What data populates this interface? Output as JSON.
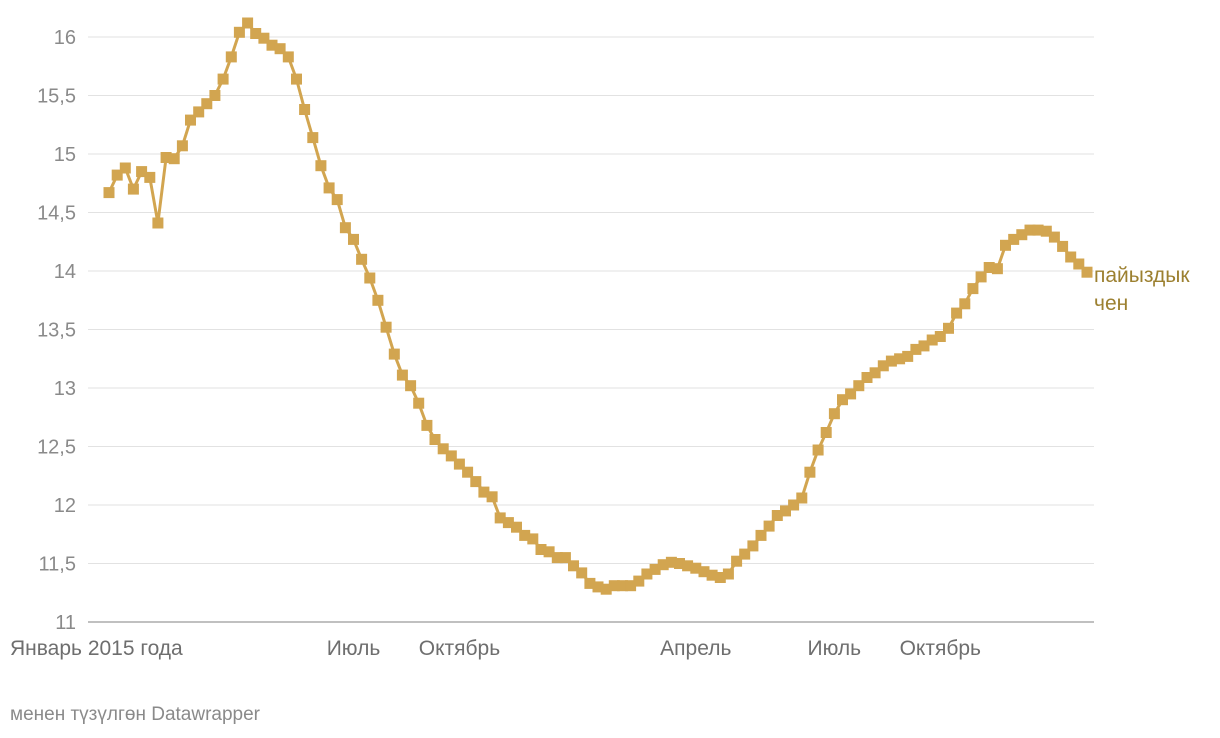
{
  "chart_data": {
    "type": "line",
    "title": "",
    "xlabel": "",
    "ylabel": "",
    "ylim": [
      11,
      16
    ],
    "y_ticks": [
      {
        "value": 16,
        "label": "16"
      },
      {
        "value": 15.5,
        "label": "15,5"
      },
      {
        "value": 15,
        "label": "15"
      },
      {
        "value": 14.5,
        "label": "14,5"
      },
      {
        "value": 14,
        "label": "14"
      },
      {
        "value": 13.5,
        "label": "13,5"
      },
      {
        "value": 13,
        "label": "13"
      },
      {
        "value": 12.5,
        "label": "12,5"
      },
      {
        "value": 12,
        "label": "12"
      },
      {
        "value": 11.5,
        "label": "11,5"
      },
      {
        "value": 11,
        "label": "11"
      }
    ],
    "x_ticks": [
      {
        "index": 0,
        "label": "Январь 2015 года",
        "anchor": "start"
      },
      {
        "index": 30,
        "label": "Июль",
        "anchor": "middle"
      },
      {
        "index": 43,
        "label": "Октябрь",
        "anchor": "middle"
      },
      {
        "index": 72,
        "label": "Апрель",
        "anchor": "middle"
      },
      {
        "index": 89,
        "label": "Июль",
        "anchor": "middle"
      },
      {
        "index": 102,
        "label": "Октябрь",
        "anchor": "middle"
      }
    ],
    "grid": true,
    "series_label": [
      "пайыздык",
      "чен"
    ],
    "color": "#d2a550",
    "label_color": "#9c8030",
    "x_count": 119,
    "values": [
      14.67,
      14.82,
      14.88,
      14.7,
      14.85,
      14.8,
      14.41,
      14.97,
      14.96,
      15.07,
      15.29,
      15.36,
      15.43,
      15.5,
      15.64,
      15.83,
      16.04,
      16.12,
      16.03,
      15.99,
      15.93,
      15.9,
      15.83,
      15.64,
      15.38,
      15.14,
      14.9,
      14.71,
      14.61,
      14.37,
      14.27,
      14.1,
      13.94,
      13.75,
      13.52,
      13.29,
      13.11,
      13.02,
      12.87,
      12.68,
      12.56,
      12.48,
      12.42,
      12.35,
      12.28,
      12.2,
      12.11,
      12.07,
      11.89,
      11.85,
      11.81,
      11.74,
      11.71,
      11.62,
      11.6,
      11.55,
      11.55,
      11.48,
      11.42,
      11.33,
      11.3,
      11.28,
      11.31,
      11.31,
      11.31,
      11.35,
      11.41,
      11.45,
      11.49,
      11.51,
      11.5,
      11.48,
      11.46,
      11.43,
      11.4,
      11.38,
      11.41,
      11.52,
      11.58,
      11.65,
      11.74,
      11.82,
      11.91,
      11.95,
      12.0,
      12.06,
      12.28,
      12.47,
      12.62,
      12.78,
      12.9,
      12.95,
      13.02,
      13.09,
      13.13,
      13.19,
      13.23,
      13.25,
      13.27,
      13.33,
      13.36,
      13.41,
      13.44,
      13.51,
      13.64,
      13.72,
      13.85,
      13.95,
      14.03,
      14.02,
      14.22,
      14.27,
      14.31,
      14.35,
      14.35,
      14.34,
      14.29,
      14.21,
      14.12,
      14.06,
      13.99
    ]
  },
  "footer": {
    "text": "менен түзүлгөн Datawrapper"
  }
}
